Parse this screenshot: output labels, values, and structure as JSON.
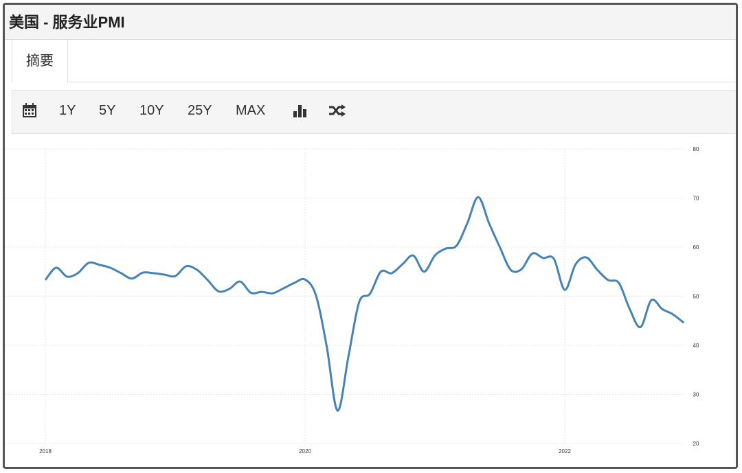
{
  "header": {
    "title": "美国 - 服务业PMI"
  },
  "tabs": [
    "摘要"
  ],
  "toolbar": {
    "buttons": [
      "1Y",
      "5Y",
      "10Y",
      "25Y",
      "MAX"
    ]
  },
  "chart_data": {
    "type": "line",
    "categories": [
      "2018",
      null,
      null,
      null,
      null,
      null,
      null,
      null,
      null,
      null,
      null,
      null,
      null,
      null,
      null,
      null,
      null,
      null,
      null,
      null,
      null,
      null,
      null,
      null,
      "2020",
      null,
      null,
      null,
      null,
      null,
      null,
      null,
      null,
      null,
      null,
      null,
      null,
      null,
      null,
      null,
      null,
      null,
      null,
      null,
      null,
      null,
      null,
      null,
      "2022",
      null,
      null,
      null,
      null,
      null,
      null,
      null,
      null,
      null,
      null,
      null
    ],
    "series": [
      {
        "color": "#4682b4",
        "values": [
          53.3,
          55.8,
          54.0,
          54.7,
          56.8,
          56.4,
          55.8,
          54.7,
          53.6,
          54.8,
          54.7,
          54.4,
          54.1,
          56.1,
          55.4,
          53.3,
          51.0,
          51.5,
          53.0,
          50.7,
          50.9,
          50.6,
          51.6,
          52.7,
          53.4,
          50.2,
          39.8,
          26.7,
          37.6,
          48.8,
          50.5,
          55.0,
          54.7,
          56.5,
          58.3,
          55.0,
          58.3,
          59.7,
          60.3,
          64.9,
          70.2,
          64.9,
          60.0,
          55.4,
          55.5,
          58.7,
          57.8,
          57.6,
          51.3,
          56.5,
          57.9,
          55.4,
          53.3,
          52.7,
          47.4,
          43.7,
          49.2,
          47.4,
          46.3,
          44.6
        ]
      }
    ],
    "ylim": [
      20,
      80
    ],
    "yticks": [
      20,
      30,
      40,
      50,
      60,
      70,
      80
    ],
    "grid": true
  }
}
